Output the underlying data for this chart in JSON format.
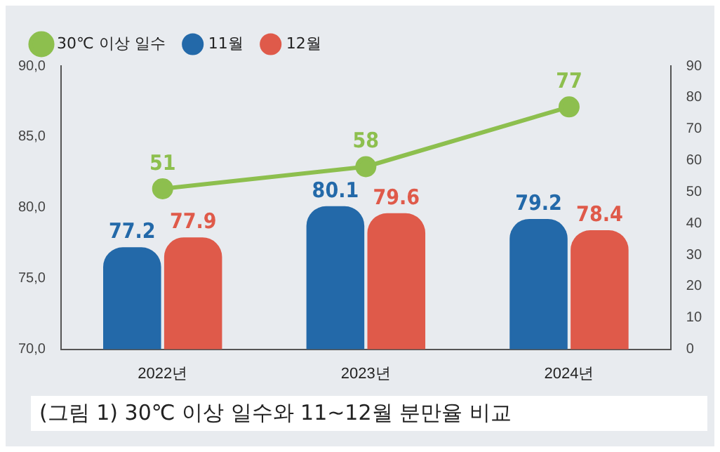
{
  "chart_data": {
    "type": "bar",
    "categories": [
      "2022년",
      "2023년",
      "2024년"
    ],
    "series": [
      {
        "name": "30℃ 이상 일수",
        "type": "line",
        "axis": "y2",
        "color": "#8dbf4e",
        "values": [
          51,
          58,
          77
        ]
      },
      {
        "name": "11월",
        "color": "#2369a9",
        "values": [
          77.2,
          80.1,
          79.2
        ]
      },
      {
        "name": "12월",
        "color": "#df5a4a",
        "values": [
          77.9,
          79.6,
          78.4
        ]
      }
    ],
    "ylim": [
      70,
      90
    ],
    "yticks": [
      {
        "value": 70,
        "label": "70,0"
      },
      {
        "value": 75,
        "label": "75,0"
      },
      {
        "value": 80,
        "label": "80,0"
      },
      {
        "value": 85,
        "label": "85,0"
      },
      {
        "value": 90,
        "label": "90,0"
      }
    ],
    "y2lim": [
      0,
      90
    ],
    "y2ticks": [
      0,
      10,
      20,
      30,
      40,
      50,
      60,
      70,
      80,
      90
    ],
    "data_labels": true,
    "legend": "top left",
    "marker": "circle",
    "grid": false,
    "annotations": [
      "(그림 1) 30℃ 이상 일수와 11~12월 분만율 비교"
    ]
  }
}
